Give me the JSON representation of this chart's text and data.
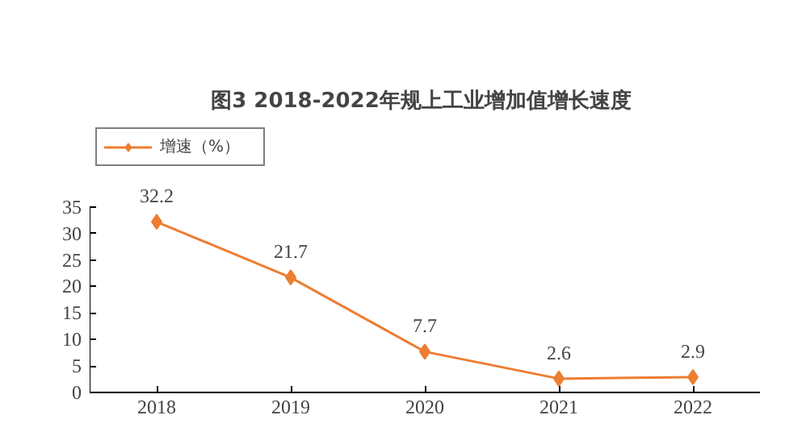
{
  "chart_data": {
    "type": "line",
    "title": "图3  2018-2022年规上工业增加值增长速度",
    "categories": [
      "2018",
      "2019",
      "2020",
      "2021",
      "2022"
    ],
    "series": [
      {
        "name": "增速（%）",
        "color": "#ed7d31",
        "values": [
          32.2,
          21.7,
          7.7,
          2.6,
          2.9
        ]
      }
    ],
    "ylim": [
      0,
      35
    ],
    "yticks": [
      0,
      5,
      10,
      15,
      20,
      25,
      30,
      35
    ],
    "data_labels": true,
    "marker": "diamond",
    "legend": "top left",
    "grid": false
  }
}
